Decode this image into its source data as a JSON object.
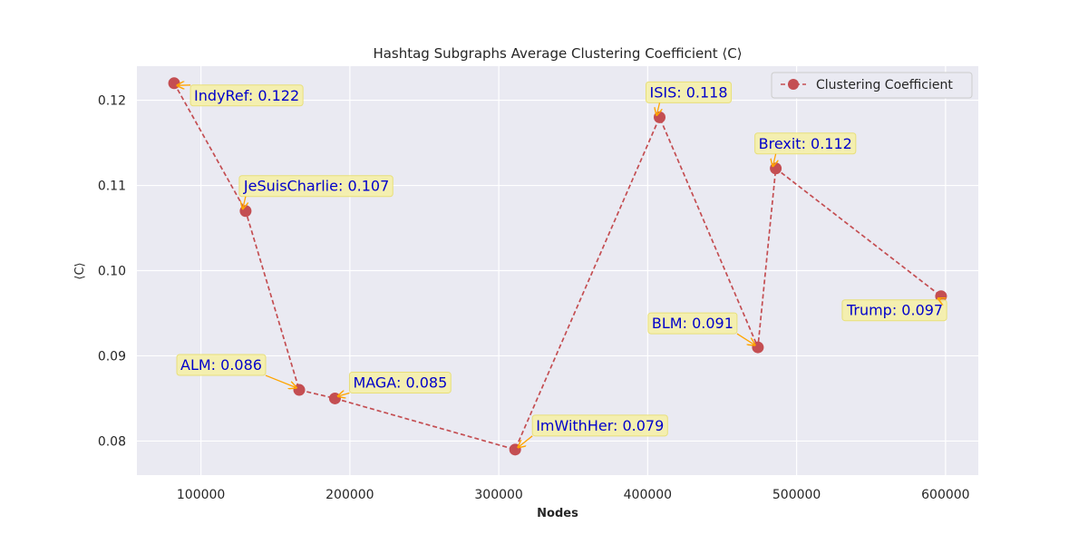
{
  "chart_data": {
    "type": "line",
    "title": "Hashtag Subgraphs Average Clustering Coefficient ⟨C⟩",
    "xlabel": "Nodes",
    "ylabel": "⟨C⟩",
    "xlim": [
      57000,
      622000
    ],
    "ylim": [
      0.076,
      0.124
    ],
    "x_ticks": [
      100000,
      200000,
      300000,
      400000,
      500000,
      600000
    ],
    "x_tick_labels": [
      "100000",
      "200000",
      "300000",
      "400000",
      "500000",
      "600000"
    ],
    "y_ticks": [
      0.08,
      0.09,
      0.1,
      0.11,
      0.12
    ],
    "y_tick_labels": [
      "0.08",
      "0.09",
      "0.10",
      "0.11",
      "0.12"
    ],
    "grid": true,
    "legend_position": "top-right",
    "series": [
      {
        "name": "Clustering Coefficient",
        "color": "#c44e52",
        "line_style": "dashed",
        "marker": "circle",
        "points": [
          {
            "label": "IndyRef",
            "x": 82000,
            "y": 0.122,
            "annotation": "IndyRef: 0.122"
          },
          {
            "label": "JeSuisCharlie",
            "x": 130000,
            "y": 0.107,
            "annotation": "JeSuisCharlie: 0.107"
          },
          {
            "label": "ALM",
            "x": 166000,
            "y": 0.086,
            "annotation": "ALM: 0.086"
          },
          {
            "label": "MAGA",
            "x": 190000,
            "y": 0.085,
            "annotation": "MAGA: 0.085"
          },
          {
            "label": "ImWithHer",
            "x": 311000,
            "y": 0.079,
            "annotation": "ImWithHer: 0.079"
          },
          {
            "label": "ISIS",
            "x": 408000,
            "y": 0.118,
            "annotation": "ISIS: 0.118"
          },
          {
            "label": "BLM",
            "x": 474000,
            "y": 0.091,
            "annotation": "BLM: 0.091"
          },
          {
            "label": "Brexit",
            "x": 486000,
            "y": 0.112,
            "annotation": "Brexit: 0.112"
          },
          {
            "label": "Trump",
            "x": 597000,
            "y": 0.097,
            "annotation": "Trump: 0.097"
          }
        ]
      }
    ],
    "annotation_style": {
      "box_color": "#f5f0a8",
      "box_border": "#e8df7a",
      "text_color": "#0000cc",
      "arrow_color": "#ffa500"
    },
    "plot_background": "#eaeaf2"
  }
}
